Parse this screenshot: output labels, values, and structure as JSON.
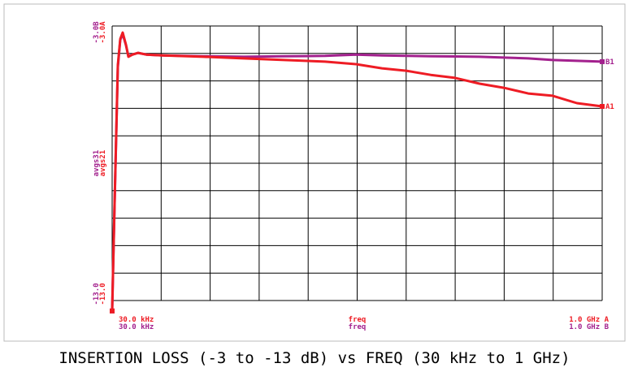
{
  "chart_data": {
    "type": "line",
    "title": "INSERTION LOSS (-3 to -13 dB) vs FREQ (30 kHz to 1 GHz)",
    "xlim": [
      0.03,
      1000
    ],
    "ylim": [
      -13,
      -3
    ],
    "xgrid": [
      0.03,
      100.027,
      200.024,
      300.021,
      400.018,
      500.015,
      600.012,
      700.009,
      800.006,
      900.003,
      1000
    ],
    "ygrid": [
      -13,
      -12,
      -11,
      -10,
      -9,
      -8,
      -7,
      -6,
      -5,
      -4,
      -3
    ],
    "grid": true,
    "x": [
      0.03,
      4.98,
      11.6,
      16.6,
      21.6,
      28.2,
      33.2,
      41.5,
      53.1,
      69.7,
      102.8,
      185.7,
      268.7,
      351.6,
      434.5,
      497.5,
      550.6,
      600.3,
      650.1,
      699.8,
      749.6,
      799.3,
      849.1,
      898.8,
      948.6,
      1000
    ],
    "series": [
      {
        "name": "A1",
        "color": "#ee1c24",
        "ylabel": "avgs21",
        "top_label": "-3.0A",
        "bottom_label": "-13.0",
        "start_label": "30.0 kHz",
        "center_label": "freq",
        "stop_label": "1.0 GHz A",
        "values": [
          -13.38,
          -9.45,
          -4.42,
          -3.47,
          -3.24,
          -3.68,
          -4.12,
          -4.04,
          -3.98,
          -4.04,
          -4.07,
          -4.12,
          -4.18,
          -4.24,
          -4.3,
          -4.39,
          -4.54,
          -4.63,
          -4.78,
          -4.89,
          -5.1,
          -5.25,
          -5.46,
          -5.54,
          -5.81,
          -5.93
        ]
      },
      {
        "name": "B1",
        "color": "#a3218e",
        "ylabel": "avgs31",
        "top_label": "-3.0B",
        "bottom_label": "-13.0",
        "start_label": "30.0 kHz",
        "center_label": "freq",
        "stop_label": "1.0 GHz B",
        "values": [
          -13.38,
          -9.5,
          -4.5,
          -3.5,
          -3.3,
          -3.7,
          -4.1,
          -4.04,
          -3.98,
          -4.04,
          -4.07,
          -4.1,
          -4.12,
          -4.1,
          -4.09,
          -4.04,
          -4.07,
          -4.09,
          -4.1,
          -4.11,
          -4.12,
          -4.15,
          -4.18,
          -4.24,
          -4.27,
          -4.3
        ]
      }
    ]
  }
}
